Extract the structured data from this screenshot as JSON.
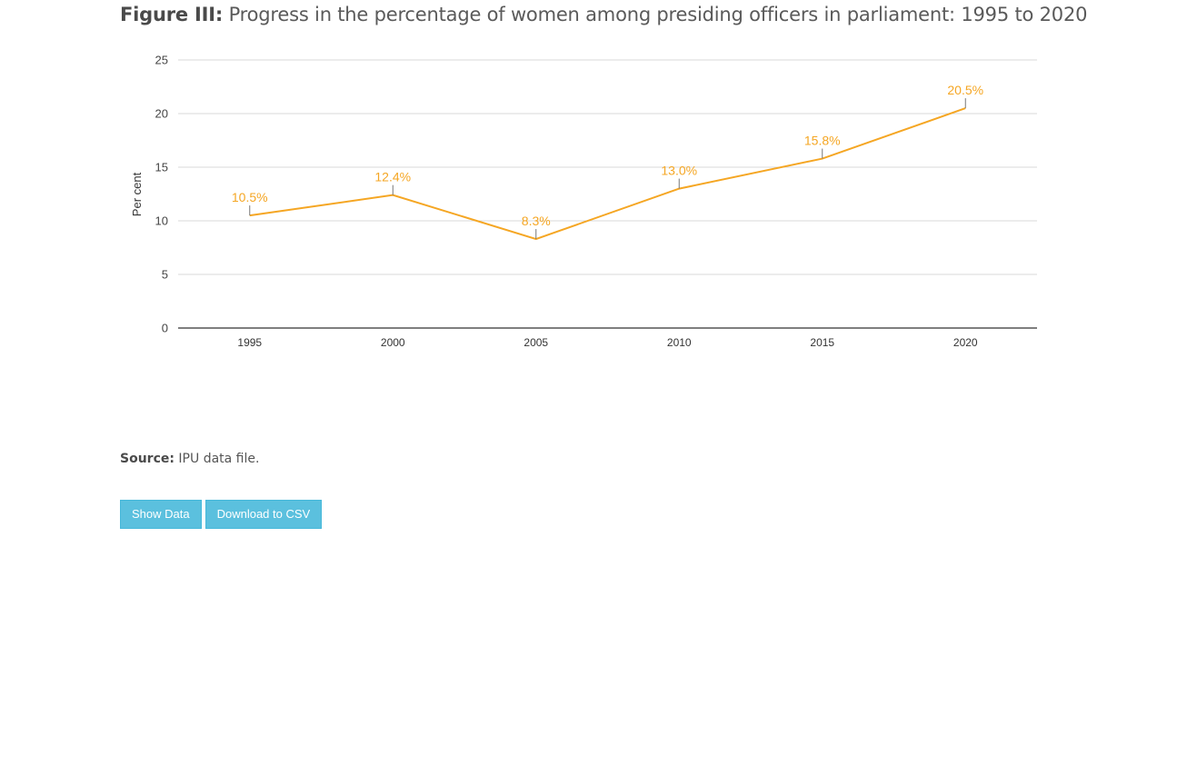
{
  "figure": {
    "label": "Figure III:",
    "title": "Progress in the percentage of women among presiding officers in parliament: 1995 to 2020"
  },
  "chart_data": {
    "type": "line",
    "ylabel": "Per cent",
    "xlabel": "",
    "ylim": [
      0,
      25
    ],
    "yticks": [
      "0",
      "5",
      "10",
      "15",
      "20",
      "25"
    ],
    "categories": [
      "1995",
      "2000",
      "2005",
      "2010",
      "2015",
      "2020"
    ],
    "series": [
      {
        "values": [
          10.5,
          12.4,
          8.3,
          13.0,
          15.8,
          20.5
        ],
        "labels": [
          "10.5%",
          "12.4%",
          "8.3%",
          "13.0%",
          "15.8%",
          "20.5%"
        ],
        "color": "#f5a623"
      }
    ],
    "grid": true
  },
  "source": {
    "label": "Source:",
    "text": "IPU data file."
  },
  "buttons": {
    "show_data": "Show Data",
    "download_csv": "Download to CSV"
  },
  "colors": {
    "line": "#f5a623",
    "button": "#5bc0de",
    "grid": "#d9d9d9",
    "axis": "#333333"
  }
}
